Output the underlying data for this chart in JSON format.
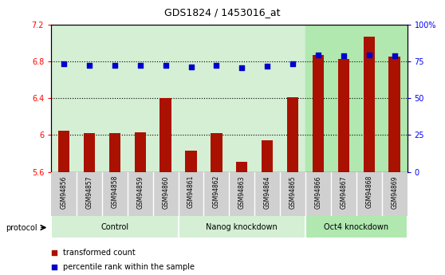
{
  "title": "GDS1824 / 1453016_at",
  "samples": [
    "GSM94856",
    "GSM94857",
    "GSM94858",
    "GSM94859",
    "GSM94860",
    "GSM94861",
    "GSM94862",
    "GSM94863",
    "GSM94864",
    "GSM94865",
    "GSM94866",
    "GSM94867",
    "GSM94868",
    "GSM94869"
  ],
  "transformed_count": [
    6.05,
    6.02,
    6.02,
    6.03,
    6.4,
    5.83,
    6.02,
    5.71,
    5.94,
    6.41,
    6.87,
    6.83,
    7.07,
    6.85
  ],
  "percentile_rank": [
    73.5,
    72.5,
    72.5,
    72.5,
    72.5,
    71.5,
    72.5,
    71.0,
    72.0,
    73.5,
    79.5,
    79.0,
    79.5,
    79.0
  ],
  "groups": [
    {
      "label": "Control",
      "start": 0,
      "end": 4,
      "color": "#d4efd4"
    },
    {
      "label": "Nanog knockdown",
      "start": 5,
      "end": 9,
      "color": "#d4efd4"
    },
    {
      "label": "Oct4 knockdown",
      "start": 10,
      "end": 13,
      "color": "#b0e8b0"
    }
  ],
  "ylim_left": [
    5.6,
    7.2
  ],
  "ylim_right": [
    0,
    100
  ],
  "yticks_left": [
    5.6,
    6.0,
    6.4,
    6.8,
    7.2
  ],
  "yticks_right": [
    0,
    25,
    50,
    75,
    100
  ],
  "ytick_left_labels": [
    "5.6",
    "6",
    "6.4",
    "6.8",
    "7.2"
  ],
  "ytick_right_labels": [
    "0",
    "25",
    "50",
    "75",
    "100%"
  ],
  "bar_color": "#aa1100",
  "dot_color": "#0000cc",
  "sample_bg_color": "#d0d0d0",
  "protocol_label": "protocol",
  "legend_bar": "transformed count",
  "legend_dot": "percentile rank within the sample",
  "base_value": 5.6,
  "gridlines_at": [
    6.0,
    6.4,
    6.8
  ]
}
